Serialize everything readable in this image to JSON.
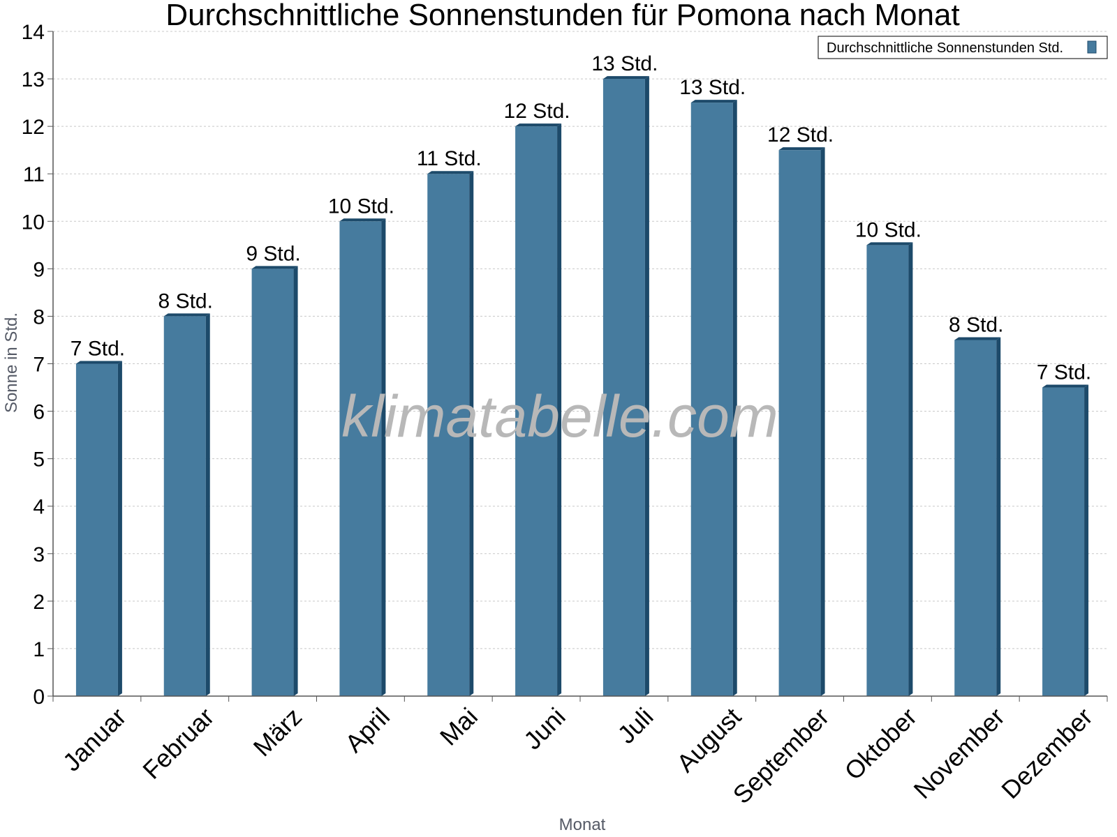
{
  "watermark": "klimatabelle.com",
  "colors": {
    "bar_face": "#467b9e",
    "bar_side": "#1d4a6a",
    "bar_top": "#1d4a6a",
    "axis": "#555555"
  },
  "chart_data": {
    "type": "bar",
    "title": "Durchschnittliche Sonnenstunden für Pomona nach Monat",
    "xlabel": "Monat",
    "ylabel": "Sonne in Std.",
    "ylim": [
      0,
      14
    ],
    "yticks": [
      0,
      1,
      2,
      3,
      4,
      5,
      6,
      7,
      8,
      9,
      10,
      11,
      12,
      13,
      14
    ],
    "grid": true,
    "legend_position": "top-right",
    "categories": [
      "Januar",
      "Februar",
      "März",
      "April",
      "Mai",
      "Juni",
      "Juli",
      "August",
      "September",
      "Oktober",
      "November",
      "Dezember"
    ],
    "series": [
      {
        "name": "Durchschnittliche Sonnenstunden Std.",
        "values": [
          7,
          8,
          9,
          10,
          11,
          12,
          13,
          12.5,
          11.5,
          9.5,
          7.5,
          6.5
        ],
        "data_labels": [
          "7 Std.",
          "8 Std.",
          "9 Std.",
          "10 Std.",
          "11 Std.",
          "12 Std.",
          "13 Std.",
          "13 Std.",
          "12 Std.",
          "10 Std.",
          "8 Std.",
          "7 Std."
        ]
      }
    ]
  }
}
